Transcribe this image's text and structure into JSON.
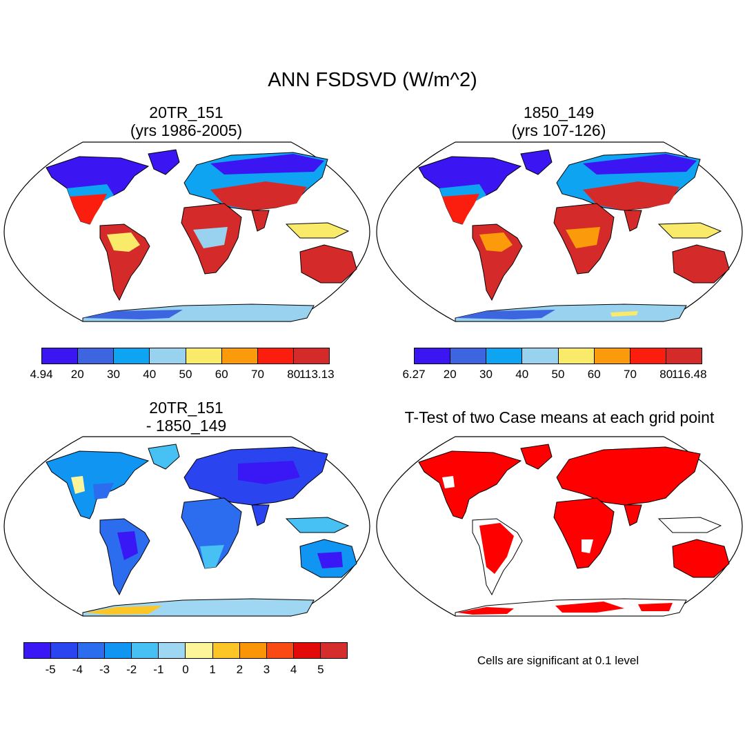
{
  "main_title": "ANN FSDSVD (W/m^2)",
  "colors": {
    "abs_scale": [
      "#3b16f2",
      "#3d65e0",
      "#0ea4f2",
      "#98d2ee",
      "#faea6a",
      "#fb9a0b",
      "#fb1d0d",
      "#d42a2a"
    ],
    "diff_scale": [
      "#3a18f5",
      "#2a44f0",
      "#2c6cee",
      "#1095f2",
      "#47c1f4",
      "#9fd7f2",
      "#fcf59a",
      "#fdc526",
      "#fb9508",
      "#f84a12",
      "#e30a0a",
      "#d52c2c"
    ],
    "ocean": "#ffffff",
    "land_outline": "#000000",
    "significant": "#ff0000"
  },
  "panels": {
    "top_left": {
      "title_line1": "20TR_151",
      "title_line2": "(yrs 1986-2005)",
      "colorbar_labels": [
        "4.94",
        "20",
        "30",
        "40",
        "50",
        "60",
        "70",
        "80",
        "113.13"
      ]
    },
    "top_right": {
      "title_line1": "1850_149",
      "title_line2": "(yrs 107-126)",
      "colorbar_labels": [
        "6.27",
        "20",
        "30",
        "40",
        "50",
        "60",
        "70",
        "80",
        "116.48"
      ]
    },
    "bottom_left": {
      "title_line1": "20TR_151",
      "title_line2": "- 1850_149",
      "colorbar_labels": [
        "-5",
        "-4",
        "-3",
        "-2",
        "-1",
        "0",
        "1",
        "2",
        "3",
        "4",
        "5"
      ]
    },
    "bottom_right": {
      "title_line1": "T-Test of two Case means at each grid point",
      "note": "Cells are significant at 0.1 level"
    }
  },
  "chart_data": {
    "type": "heatmap",
    "title": "ANN FSDSVD (W/m^2)",
    "projection": "Robinson",
    "maps": [
      {
        "name": "20TR_151 (yrs 1986-2005)",
        "levels": [
          4.94,
          20,
          30,
          40,
          50,
          60,
          70,
          80,
          113.13
        ]
      },
      {
        "name": "1850_149 (yrs 107-126)",
        "levels": [
          6.27,
          20,
          30,
          40,
          50,
          60,
          70,
          80,
          116.48
        ]
      },
      {
        "name": "20TR_151 - 1850_149",
        "levels": [
          -5,
          -4,
          -3,
          -2,
          -1,
          0,
          1,
          2,
          3,
          4,
          5
        ]
      },
      {
        "name": "T-Test of two Case means at each grid point",
        "significance_level": 0.1
      }
    ]
  }
}
